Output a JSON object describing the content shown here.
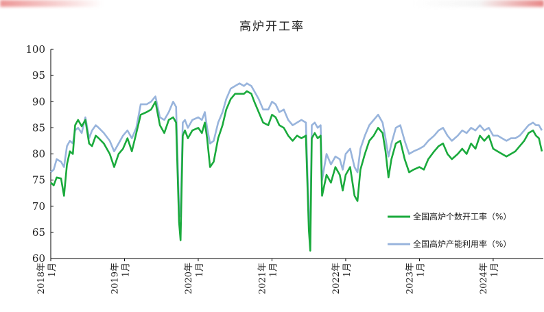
{
  "chart_data": {
    "type": "line",
    "title": "高炉开工率",
    "xlabel": "",
    "ylabel": "",
    "ylim": [
      60,
      100
    ],
    "yticks": [
      60,
      65,
      70,
      75,
      80,
      85,
      90,
      95,
      100
    ],
    "x_start": "2018-01",
    "x_end": "2024-09",
    "xtick_labels": [
      {
        "year": "2018年",
        "month": "1月",
        "x": 2018.0
      },
      {
        "year": "2019年",
        "month": "1月",
        "x": 2019.0
      },
      {
        "year": "2020年",
        "month": "1月",
        "x": 2020.0
      },
      {
        "year": "2021年",
        "month": "1月",
        "x": 2021.0
      },
      {
        "year": "2022年",
        "month": "1月",
        "x": 2022.0
      },
      {
        "year": "2023年",
        "month": "1月",
        "x": 2023.0
      },
      {
        "year": "2024年",
        "month": "1月",
        "x": 2024.0
      }
    ],
    "legend_placement": "lower-right",
    "series": [
      {
        "name": "全国高炉个数开工率（%）",
        "color": "#1aaa3c",
        "points": [
          [
            2018.0,
            74.5
          ],
          [
            2018.04,
            74.0
          ],
          [
            2018.08,
            75.5
          ],
          [
            2018.14,
            75.3
          ],
          [
            2018.18,
            72.0
          ],
          [
            2018.22,
            78.0
          ],
          [
            2018.26,
            80.5
          ],
          [
            2018.3,
            80.0
          ],
          [
            2018.33,
            85.5
          ],
          [
            2018.37,
            86.5
          ],
          [
            2018.42,
            85.3
          ],
          [
            2018.47,
            86.5
          ],
          [
            2018.52,
            82.0
          ],
          [
            2018.56,
            81.5
          ],
          [
            2018.61,
            83.5
          ],
          [
            2018.65,
            83.0
          ],
          [
            2018.72,
            82.0
          ],
          [
            2018.8,
            80.0
          ],
          [
            2018.86,
            77.5
          ],
          [
            2018.92,
            80.0
          ],
          [
            2018.98,
            81.0
          ],
          [
            2019.04,
            83.0
          ],
          [
            2019.1,
            80.5
          ],
          [
            2019.16,
            84.0
          ],
          [
            2019.22,
            87.5
          ],
          [
            2019.3,
            88.0
          ],
          [
            2019.36,
            88.5
          ],
          [
            2019.42,
            90.0
          ],
          [
            2019.48,
            85.5
          ],
          [
            2019.54,
            84.0
          ],
          [
            2019.6,
            86.5
          ],
          [
            2019.66,
            87.0
          ],
          [
            2019.7,
            86.0
          ],
          [
            2019.74,
            67.0
          ],
          [
            2019.76,
            63.5
          ],
          [
            2019.79,
            83.5
          ],
          [
            2019.82,
            84.5
          ],
          [
            2019.86,
            83.0
          ],
          [
            2019.92,
            84.5
          ],
          [
            2020.0,
            85.0
          ],
          [
            2020.05,
            84.0
          ],
          [
            2020.09,
            86.0
          ],
          [
            2020.12,
            83.0
          ],
          [
            2020.16,
            77.5
          ],
          [
            2020.21,
            78.5
          ],
          [
            2020.27,
            83.0
          ],
          [
            2020.33,
            85.5
          ],
          [
            2020.38,
            88.5
          ],
          [
            2020.44,
            90.5
          ],
          [
            2020.5,
            91.5
          ],
          [
            2020.56,
            91.5
          ],
          [
            2020.62,
            91.5
          ],
          [
            2020.66,
            92.0
          ],
          [
            2020.72,
            91.5
          ],
          [
            2020.76,
            90.0
          ],
          [
            2020.82,
            88.0
          ],
          [
            2020.88,
            86.0
          ],
          [
            2020.95,
            85.5
          ],
          [
            2021.0,
            87.5
          ],
          [
            2021.05,
            87.0
          ],
          [
            2021.1,
            85.5
          ],
          [
            2021.16,
            85.0
          ],
          [
            2021.22,
            83.5
          ],
          [
            2021.28,
            82.5
          ],
          [
            2021.34,
            83.5
          ],
          [
            2021.4,
            83.0
          ],
          [
            2021.46,
            83.5
          ],
          [
            2021.5,
            65.5
          ],
          [
            2021.52,
            61.5
          ],
          [
            2021.54,
            83.0
          ],
          [
            2021.58,
            84.0
          ],
          [
            2021.62,
            83.0
          ],
          [
            2021.66,
            83.5
          ],
          [
            2021.68,
            72.0
          ],
          [
            2021.74,
            76.0
          ],
          [
            2021.8,
            74.5
          ],
          [
            2021.86,
            77.5
          ],
          [
            2021.92,
            76.0
          ],
          [
            2021.96,
            73.0
          ],
          [
            2022.0,
            76.0
          ],
          [
            2022.06,
            77.5
          ],
          [
            2022.12,
            72.0
          ],
          [
            2022.16,
            71.0
          ],
          [
            2022.2,
            77.0
          ],
          [
            2022.26,
            80.0
          ],
          [
            2022.32,
            82.5
          ],
          [
            2022.38,
            83.5
          ],
          [
            2022.44,
            85.0
          ],
          [
            2022.5,
            84.0
          ],
          [
            2022.54,
            80.5
          ],
          [
            2022.58,
            75.5
          ],
          [
            2022.62,
            79.0
          ],
          [
            2022.68,
            82.0
          ],
          [
            2022.74,
            82.5
          ],
          [
            2022.8,
            79.0
          ],
          [
            2022.86,
            76.5
          ],
          [
            2022.92,
            77.0
          ],
          [
            2023.0,
            77.5
          ],
          [
            2023.06,
            77.0
          ],
          [
            2023.12,
            79.0
          ],
          [
            2023.2,
            80.5
          ],
          [
            2023.26,
            81.5
          ],
          [
            2023.32,
            82.0
          ],
          [
            2023.38,
            80.0
          ],
          [
            2023.44,
            79.0
          ],
          [
            2023.52,
            80.0
          ],
          [
            2023.58,
            81.0
          ],
          [
            2023.64,
            80.0
          ],
          [
            2023.7,
            82.0
          ],
          [
            2023.76,
            81.0
          ],
          [
            2023.82,
            83.5
          ],
          [
            2023.88,
            82.5
          ],
          [
            2023.94,
            83.5
          ],
          [
            2024.0,
            81.0
          ],
          [
            2024.06,
            80.5
          ],
          [
            2024.12,
            80.0
          ],
          [
            2024.18,
            79.5
          ],
          [
            2024.24,
            80.0
          ],
          [
            2024.3,
            80.5
          ],
          [
            2024.36,
            81.5
          ],
          [
            2024.42,
            82.5
          ],
          [
            2024.48,
            84.0
          ],
          [
            2024.54,
            84.5
          ],
          [
            2024.58,
            83.5
          ],
          [
            2024.62,
            83.0
          ],
          [
            2024.66,
            80.5
          ]
        ]
      },
      {
        "name": "全国高炉产能利用率（%）",
        "color": "#98b4dc",
        "points": [
          [
            2018.0,
            76.5
          ],
          [
            2018.04,
            77.0
          ],
          [
            2018.08,
            79.0
          ],
          [
            2018.14,
            78.5
          ],
          [
            2018.18,
            77.5
          ],
          [
            2018.22,
            81.5
          ],
          [
            2018.26,
            82.5
          ],
          [
            2018.3,
            82.0
          ],
          [
            2018.33,
            84.5
          ],
          [
            2018.37,
            85.0
          ],
          [
            2018.42,
            84.0
          ],
          [
            2018.47,
            87.0
          ],
          [
            2018.52,
            83.0
          ],
          [
            2018.56,
            84.5
          ],
          [
            2018.61,
            85.5
          ],
          [
            2018.65,
            85.0
          ],
          [
            2018.72,
            84.0
          ],
          [
            2018.8,
            82.5
          ],
          [
            2018.86,
            80.5
          ],
          [
            2018.92,
            82.0
          ],
          [
            2018.98,
            83.5
          ],
          [
            2019.04,
            84.5
          ],
          [
            2019.1,
            83.0
          ],
          [
            2019.16,
            85.0
          ],
          [
            2019.22,
            89.5
          ],
          [
            2019.3,
            89.5
          ],
          [
            2019.36,
            90.0
          ],
          [
            2019.42,
            91.0
          ],
          [
            2019.48,
            87.0
          ],
          [
            2019.54,
            86.5
          ],
          [
            2019.6,
            88.0
          ],
          [
            2019.66,
            90.0
          ],
          [
            2019.7,
            89.0
          ],
          [
            2019.74,
            69.5
          ],
          [
            2019.76,
            68.0
          ],
          [
            2019.79,
            86.0
          ],
          [
            2019.82,
            86.5
          ],
          [
            2019.86,
            85.0
          ],
          [
            2019.92,
            86.5
          ],
          [
            2020.0,
            87.0
          ],
          [
            2020.05,
            86.5
          ],
          [
            2020.09,
            88.0
          ],
          [
            2020.12,
            85.0
          ],
          [
            2020.16,
            82.0
          ],
          [
            2020.21,
            82.5
          ],
          [
            2020.27,
            86.0
          ],
          [
            2020.33,
            88.0
          ],
          [
            2020.38,
            90.5
          ],
          [
            2020.44,
            92.5
          ],
          [
            2020.5,
            93.0
          ],
          [
            2020.56,
            93.5
          ],
          [
            2020.62,
            93.0
          ],
          [
            2020.66,
            93.5
          ],
          [
            2020.72,
            93.0
          ],
          [
            2020.76,
            92.0
          ],
          [
            2020.82,
            90.5
          ],
          [
            2020.88,
            88.5
          ],
          [
            2020.95,
            88.5
          ],
          [
            2021.0,
            90.0
          ],
          [
            2021.05,
            89.5
          ],
          [
            2021.1,
            88.0
          ],
          [
            2021.16,
            88.5
          ],
          [
            2021.22,
            86.5
          ],
          [
            2021.28,
            85.5
          ],
          [
            2021.34,
            86.0
          ],
          [
            2021.4,
            86.5
          ],
          [
            2021.46,
            86.0
          ],
          [
            2021.5,
            68.0
          ],
          [
            2021.52,
            66.0
          ],
          [
            2021.54,
            85.5
          ],
          [
            2021.58,
            86.0
          ],
          [
            2021.62,
            85.0
          ],
          [
            2021.66,
            85.5
          ],
          [
            2021.68,
            75.0
          ],
          [
            2021.74,
            80.0
          ],
          [
            2021.8,
            78.0
          ],
          [
            2021.86,
            79.5
          ],
          [
            2021.92,
            79.0
          ],
          [
            2021.96,
            77.0
          ],
          [
            2022.0,
            80.0
          ],
          [
            2022.06,
            81.0
          ],
          [
            2022.12,
            77.5
          ],
          [
            2022.16,
            76.5
          ],
          [
            2022.2,
            81.0
          ],
          [
            2022.26,
            83.5
          ],
          [
            2022.32,
            85.5
          ],
          [
            2022.38,
            86.5
          ],
          [
            2022.44,
            87.5
          ],
          [
            2022.5,
            86.0
          ],
          [
            2022.54,
            83.0
          ],
          [
            2022.58,
            79.5
          ],
          [
            2022.62,
            82.0
          ],
          [
            2022.68,
            85.0
          ],
          [
            2022.74,
            85.5
          ],
          [
            2022.8,
            82.5
          ],
          [
            2022.86,
            80.0
          ],
          [
            2022.92,
            80.5
          ],
          [
            2023.0,
            81.0
          ],
          [
            2023.06,
            81.5
          ],
          [
            2023.12,
            82.5
          ],
          [
            2023.2,
            83.5
          ],
          [
            2023.26,
            84.5
          ],
          [
            2023.32,
            85.0
          ],
          [
            2023.38,
            83.5
          ],
          [
            2023.44,
            82.5
          ],
          [
            2023.52,
            83.5
          ],
          [
            2023.58,
            84.5
          ],
          [
            2023.64,
            84.0
          ],
          [
            2023.7,
            85.0
          ],
          [
            2023.76,
            84.5
          ],
          [
            2023.82,
            85.5
          ],
          [
            2023.88,
            84.5
          ],
          [
            2023.94,
            85.0
          ],
          [
            2024.0,
            83.5
          ],
          [
            2024.06,
            83.5
          ],
          [
            2024.12,
            83.0
          ],
          [
            2024.18,
            82.5
          ],
          [
            2024.24,
            83.0
          ],
          [
            2024.3,
            83.0
          ],
          [
            2024.36,
            83.5
          ],
          [
            2024.42,
            84.5
          ],
          [
            2024.48,
            85.5
          ],
          [
            2024.54,
            86.0
          ],
          [
            2024.58,
            85.5
          ],
          [
            2024.62,
            85.5
          ],
          [
            2024.66,
            84.5
          ]
        ]
      }
    ]
  }
}
